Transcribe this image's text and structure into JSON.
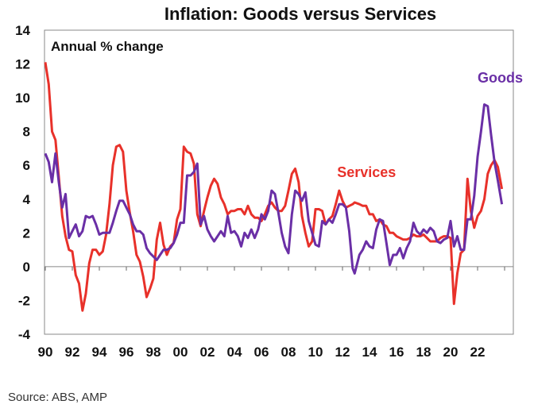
{
  "chart_data": {
    "type": "line",
    "title": "Inflation: Goods versus Services",
    "ylabel": "Annual % change",
    "xlabel": "",
    "ylim": [
      -4,
      14
    ],
    "xlim": [
      1990,
      2024.6
    ],
    "yticks": [
      14,
      12,
      10,
      8,
      6,
      4,
      2,
      0,
      -2,
      -4
    ],
    "xticks": [
      {
        "value": 1990,
        "label": "90"
      },
      {
        "value": 1992,
        "label": "92"
      },
      {
        "value": 1994,
        "label": "94"
      },
      {
        "value": 1996,
        "label": "96"
      },
      {
        "value": 1998,
        "label": "98"
      },
      {
        "value": 2000,
        "label": "00"
      },
      {
        "value": 2002,
        "label": "02"
      },
      {
        "value": 2004,
        "label": "04"
      },
      {
        "value": 2006,
        "label": "06"
      },
      {
        "value": 2008,
        "label": "08"
      },
      {
        "value": 2010,
        "label": "10"
      },
      {
        "value": 2012,
        "label": "12"
      },
      {
        "value": 2014,
        "label": "14"
      },
      {
        "value": 2016,
        "label": "16"
      },
      {
        "value": 2018,
        "label": "18"
      },
      {
        "value": 2020,
        "label": "20"
      },
      {
        "value": 2022,
        "label": "22"
      },
      {
        "value": 2024,
        "label": ""
      }
    ],
    "grid": false,
    "series": [
      {
        "name": "Services",
        "color": "#e8312a",
        "label_pos": [
          2011.6,
          5.3
        ],
        "points": [
          [
            1990.0,
            12.1
          ],
          [
            1990.25,
            10.8
          ],
          [
            1990.5,
            8.0
          ],
          [
            1990.75,
            7.5
          ],
          [
            1991.0,
            5.3
          ],
          [
            1991.25,
            3.0
          ],
          [
            1991.5,
            1.8
          ],
          [
            1991.75,
            1.0
          ],
          [
            1992.0,
            0.9
          ],
          [
            1992.25,
            -0.5
          ],
          [
            1992.5,
            -1.0
          ],
          [
            1992.75,
            -2.6
          ],
          [
            1993.0,
            -1.6
          ],
          [
            1993.25,
            0.2
          ],
          [
            1993.5,
            1.0
          ],
          [
            1993.75,
            1.0
          ],
          [
            1994.0,
            0.7
          ],
          [
            1994.25,
            0.9
          ],
          [
            1994.5,
            1.9
          ],
          [
            1994.75,
            3.7
          ],
          [
            1995.0,
            6.0
          ],
          [
            1995.25,
            7.1
          ],
          [
            1995.5,
            7.2
          ],
          [
            1995.75,
            6.8
          ],
          [
            1996.0,
            4.5
          ],
          [
            1996.25,
            3.2
          ],
          [
            1996.5,
            2.1
          ],
          [
            1996.75,
            0.7
          ],
          [
            1997.0,
            0.3
          ],
          [
            1997.25,
            -0.6
          ],
          [
            1997.5,
            -1.8
          ],
          [
            1997.75,
            -1.3
          ],
          [
            1998.0,
            -0.7
          ],
          [
            1998.25,
            1.6
          ],
          [
            1998.5,
            2.6
          ],
          [
            1998.75,
            1.3
          ],
          [
            1999.0,
            0.7
          ],
          [
            1999.25,
            1.2
          ],
          [
            1999.5,
            1.4
          ],
          [
            1999.75,
            2.8
          ],
          [
            2000.0,
            3.4
          ],
          [
            2000.25,
            7.1
          ],
          [
            2000.5,
            6.8
          ],
          [
            2000.75,
            6.7
          ],
          [
            2001.0,
            6.1
          ],
          [
            2001.25,
            3.1
          ],
          [
            2001.5,
            2.4
          ],
          [
            2001.75,
            3.3
          ],
          [
            2002.0,
            4.1
          ],
          [
            2002.25,
            4.8
          ],
          [
            2002.5,
            5.2
          ],
          [
            2002.75,
            4.9
          ],
          [
            2003.0,
            4.1
          ],
          [
            2003.25,
            3.7
          ],
          [
            2003.5,
            3.1
          ],
          [
            2003.75,
            3.3
          ],
          [
            2004.0,
            3.3
          ],
          [
            2004.25,
            3.4
          ],
          [
            2004.5,
            3.4
          ],
          [
            2004.75,
            3.1
          ],
          [
            2005.0,
            3.6
          ],
          [
            2005.25,
            3.1
          ],
          [
            2005.5,
            2.9
          ],
          [
            2005.75,
            2.9
          ],
          [
            2006.0,
            2.7
          ],
          [
            2006.25,
            3.1
          ],
          [
            2006.5,
            3.6
          ],
          [
            2006.75,
            3.8
          ],
          [
            2007.0,
            3.5
          ],
          [
            2007.25,
            3.3
          ],
          [
            2007.5,
            3.3
          ],
          [
            2007.75,
            3.6
          ],
          [
            2008.0,
            4.5
          ],
          [
            2008.25,
            5.5
          ],
          [
            2008.5,
            5.8
          ],
          [
            2008.75,
            5.0
          ],
          [
            2009.0,
            3.0
          ],
          [
            2009.25,
            2.0
          ],
          [
            2009.5,
            1.2
          ],
          [
            2009.75,
            1.5
          ],
          [
            2010.0,
            3.4
          ],
          [
            2010.25,
            3.4
          ],
          [
            2010.5,
            3.3
          ],
          [
            2010.75,
            2.5
          ],
          [
            2011.0,
            2.8
          ],
          [
            2011.25,
            3.0
          ],
          [
            2011.5,
            3.7
          ],
          [
            2011.75,
            4.5
          ],
          [
            2012.0,
            3.9
          ],
          [
            2012.25,
            3.5
          ],
          [
            2012.5,
            3.6
          ],
          [
            2012.75,
            3.7
          ],
          [
            2012.9,
            3.8
          ],
          [
            2013.25,
            3.7
          ],
          [
            2013.5,
            3.6
          ],
          [
            2013.75,
            3.6
          ],
          [
            2014.0,
            3.1
          ],
          [
            2014.25,
            3.1
          ],
          [
            2014.5,
            2.7
          ],
          [
            2014.75,
            2.8
          ],
          [
            2015.0,
            2.5
          ],
          [
            2015.25,
            2.4
          ],
          [
            2015.5,
            2.0
          ],
          [
            2015.75,
            2.0
          ],
          [
            2016.0,
            1.8
          ],
          [
            2016.25,
            1.7
          ],
          [
            2016.5,
            1.6
          ],
          [
            2016.75,
            1.6
          ],
          [
            2017.0,
            1.7
          ],
          [
            2017.25,
            1.9
          ],
          [
            2017.5,
            1.8
          ],
          [
            2017.75,
            1.8
          ],
          [
            2018.0,
            1.9
          ],
          [
            2018.25,
            1.7
          ],
          [
            2018.5,
            1.5
          ],
          [
            2018.75,
            1.5
          ],
          [
            2019.0,
            1.5
          ],
          [
            2019.25,
            1.7
          ],
          [
            2019.5,
            1.8
          ],
          [
            2019.75,
            1.8
          ],
          [
            2020.0,
            1.7
          ],
          [
            2020.25,
            -2.2
          ],
          [
            2020.5,
            -0.4
          ],
          [
            2020.75,
            0.8
          ],
          [
            2021.0,
            1.0
          ],
          [
            2021.25,
            5.2
          ],
          [
            2021.5,
            3.3
          ],
          [
            2021.75,
            2.3
          ],
          [
            2022.0,
            3.0
          ],
          [
            2022.25,
            3.3
          ],
          [
            2022.5,
            4.0
          ],
          [
            2022.75,
            5.5
          ],
          [
            2023.0,
            6.0
          ],
          [
            2023.25,
            6.3
          ],
          [
            2023.5,
            5.9
          ],
          [
            2023.8,
            4.6
          ]
        ]
      },
      {
        "name": "Goods",
        "color": "#6a2fa6",
        "label_pos": [
          2022.0,
          10.9
        ],
        "points": [
          [
            1990.0,
            6.7
          ],
          [
            1990.25,
            6.2
          ],
          [
            1990.5,
            5.0
          ],
          [
            1990.75,
            6.7
          ],
          [
            1991.0,
            5.0
          ],
          [
            1991.25,
            3.5
          ],
          [
            1991.5,
            4.3
          ],
          [
            1991.75,
            1.7
          ],
          [
            1992.0,
            2.1
          ],
          [
            1992.25,
            2.5
          ],
          [
            1992.5,
            1.8
          ],
          [
            1992.75,
            2.1
          ],
          [
            1993.0,
            3.0
          ],
          [
            1993.25,
            2.9
          ],
          [
            1993.5,
            3.0
          ],
          [
            1993.75,
            2.5
          ],
          [
            1994.0,
            1.9
          ],
          [
            1994.25,
            2.0
          ],
          [
            1994.5,
            2.0
          ],
          [
            1994.75,
            2.0
          ],
          [
            1995.0,
            2.6
          ],
          [
            1995.25,
            3.3
          ],
          [
            1995.5,
            3.9
          ],
          [
            1995.75,
            3.9
          ],
          [
            1996.0,
            3.5
          ],
          [
            1996.25,
            3.1
          ],
          [
            1996.5,
            2.5
          ],
          [
            1996.75,
            2.1
          ],
          [
            1997.0,
            2.1
          ],
          [
            1997.25,
            1.9
          ],
          [
            1997.5,
            1.1
          ],
          [
            1997.75,
            0.8
          ],
          [
            1998.0,
            0.6
          ],
          [
            1998.25,
            0.4
          ],
          [
            1998.5,
            0.7
          ],
          [
            1998.75,
            1.0
          ],
          [
            1999.0,
            1.0
          ],
          [
            1999.25,
            1.1
          ],
          [
            1999.5,
            1.4
          ],
          [
            1999.75,
            1.9
          ],
          [
            2000.0,
            2.6
          ],
          [
            2000.25,
            2.6
          ],
          [
            2000.5,
            5.4
          ],
          [
            2000.75,
            5.4
          ],
          [
            2001.0,
            5.6
          ],
          [
            2001.25,
            6.1
          ],
          [
            2001.5,
            2.5
          ],
          [
            2001.75,
            3.0
          ],
          [
            2002.0,
            2.2
          ],
          [
            2002.25,
            1.8
          ],
          [
            2002.5,
            1.5
          ],
          [
            2002.75,
            1.8
          ],
          [
            2003.0,
            2.1
          ],
          [
            2003.25,
            1.8
          ],
          [
            2003.5,
            3.0
          ],
          [
            2003.75,
            2.0
          ],
          [
            2004.0,
            2.1
          ],
          [
            2004.25,
            1.8
          ],
          [
            2004.5,
            1.2
          ],
          [
            2004.75,
            2.0
          ],
          [
            2005.0,
            1.7
          ],
          [
            2005.25,
            2.2
          ],
          [
            2005.5,
            1.7
          ],
          [
            2005.75,
            2.2
          ],
          [
            2006.0,
            3.1
          ],
          [
            2006.25,
            2.8
          ],
          [
            2006.5,
            3.3
          ],
          [
            2006.75,
            4.5
          ],
          [
            2007.0,
            4.3
          ],
          [
            2007.25,
            3.2
          ],
          [
            2007.5,
            2.0
          ],
          [
            2007.75,
            1.2
          ],
          [
            2008.0,
            0.8
          ],
          [
            2008.25,
            3.1
          ],
          [
            2008.5,
            4.5
          ],
          [
            2008.75,
            4.3
          ],
          [
            2009.0,
            3.9
          ],
          [
            2009.25,
            4.4
          ],
          [
            2009.5,
            2.7
          ],
          [
            2009.75,
            2.0
          ],
          [
            2010.0,
            1.3
          ],
          [
            2010.25,
            1.2
          ],
          [
            2010.5,
            2.7
          ],
          [
            2010.75,
            2.5
          ],
          [
            2011.0,
            2.8
          ],
          [
            2011.25,
            2.6
          ],
          [
            2011.5,
            3.1
          ],
          [
            2011.75,
            3.7
          ],
          [
            2012.0,
            3.7
          ],
          [
            2012.25,
            3.5
          ],
          [
            2012.5,
            2.1
          ],
          [
            2012.75,
            -0.1
          ],
          [
            2012.9,
            -0.4
          ],
          [
            2013.25,
            0.7
          ],
          [
            2013.5,
            1.0
          ],
          [
            2013.75,
            1.5
          ],
          [
            2014.0,
            1.2
          ],
          [
            2014.25,
            1.1
          ],
          [
            2014.5,
            2.2
          ],
          [
            2014.75,
            2.8
          ],
          [
            2015.0,
            2.7
          ],
          [
            2015.25,
            1.4
          ],
          [
            2015.5,
            0.1
          ],
          [
            2015.75,
            0.7
          ],
          [
            2016.0,
            0.7
          ],
          [
            2016.25,
            1.1
          ],
          [
            2016.5,
            0.5
          ],
          [
            2016.75,
            1.1
          ],
          [
            2017.0,
            1.5
          ],
          [
            2017.25,
            2.6
          ],
          [
            2017.5,
            2.1
          ],
          [
            2017.75,
            1.9
          ],
          [
            2018.0,
            2.2
          ],
          [
            2018.25,
            2.0
          ],
          [
            2018.5,
            2.3
          ],
          [
            2018.75,
            2.1
          ],
          [
            2019.0,
            1.5
          ],
          [
            2019.25,
            1.4
          ],
          [
            2019.5,
            1.6
          ],
          [
            2019.75,
            1.7
          ],
          [
            2020.0,
            2.7
          ],
          [
            2020.25,
            1.2
          ],
          [
            2020.5,
            1.8
          ],
          [
            2020.75,
            1.0
          ],
          [
            2021.0,
            1.0
          ],
          [
            2021.25,
            2.8
          ],
          [
            2021.5,
            2.8
          ],
          [
            2021.75,
            4.2
          ],
          [
            2022.0,
            6.5
          ],
          [
            2022.25,
            8.0
          ],
          [
            2022.5,
            9.6
          ],
          [
            2022.75,
            9.5
          ],
          [
            2023.0,
            7.8
          ],
          [
            2023.25,
            6.2
          ],
          [
            2023.5,
            5.1
          ],
          [
            2023.8,
            3.7
          ]
        ]
      }
    ]
  },
  "source": "Source: ABS, AMP"
}
